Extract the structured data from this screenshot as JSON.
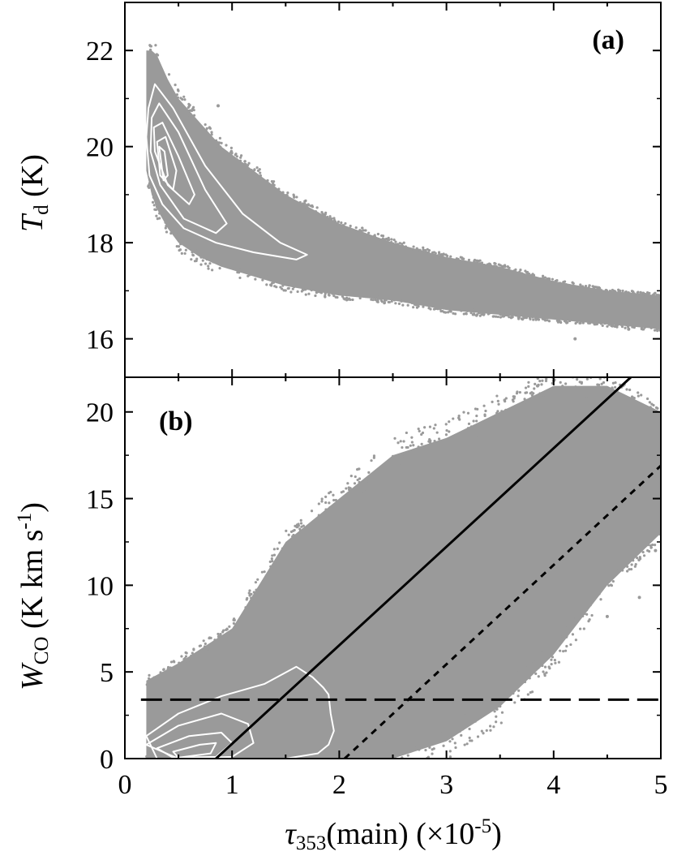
{
  "chart_data": [
    {
      "type": "scatter",
      "panel_label": "(a)",
      "ylabel": {
        "symbol": "T",
        "subscript": "d",
        "unit": " (K)"
      },
      "xlim": [
        0,
        5
      ],
      "ylim": [
        15.2,
        23.0
      ],
      "yticks": [
        16,
        18,
        20,
        22
      ],
      "ytick_labels": [
        "16",
        "18",
        "20",
        "22"
      ],
      "colors": {
        "points": "#9a9a9a",
        "contours": "#ffffff"
      },
      "envelope": {
        "x": [
          0.2,
          0.25,
          0.3,
          0.4,
          0.5,
          0.7,
          0.9,
          1.2,
          1.5,
          2.0,
          2.5,
          3.0,
          3.5,
          4.0,
          4.5,
          5.0
        ],
        "upper": [
          22.0,
          22.0,
          21.9,
          21.4,
          21.0,
          20.5,
          20.0,
          19.5,
          19.0,
          18.4,
          18.0,
          17.7,
          17.5,
          17.2,
          17.0,
          16.9
        ],
        "lower": [
          19.5,
          19.0,
          18.7,
          18.3,
          18.0,
          17.7,
          17.5,
          17.3,
          17.1,
          16.9,
          16.8,
          16.6,
          16.5,
          16.4,
          16.3,
          16.2
        ]
      },
      "contours": [
        {
          "x": [
            0.22,
            0.28,
            0.45,
            0.75,
            1.1,
            1.45,
            1.7,
            1.6,
            1.2,
            0.85,
            0.55,
            0.35,
            0.23,
            0.2,
            0.22
          ],
          "y": [
            20.8,
            21.3,
            20.8,
            19.6,
            18.6,
            18.0,
            17.75,
            17.65,
            17.8,
            18.0,
            18.3,
            18.8,
            19.4,
            20.2,
            20.8
          ]
        },
        {
          "x": [
            0.25,
            0.32,
            0.5,
            0.75,
            0.95,
            0.85,
            0.55,
            0.33,
            0.24,
            0.25
          ],
          "y": [
            20.6,
            20.9,
            20.3,
            19.1,
            18.4,
            18.2,
            18.5,
            19.2,
            19.9,
            20.6
          ]
        },
        {
          "x": [
            0.27,
            0.35,
            0.5,
            0.65,
            0.6,
            0.4,
            0.28,
            0.27
          ],
          "y": [
            20.4,
            20.5,
            19.8,
            19.0,
            18.8,
            19.2,
            19.9,
            20.4
          ]
        },
        {
          "x": [
            0.3,
            0.38,
            0.48,
            0.45,
            0.33,
            0.3
          ],
          "y": [
            20.1,
            20.2,
            19.5,
            19.1,
            19.4,
            20.1
          ]
        },
        {
          "x": [
            0.32,
            0.37,
            0.4,
            0.36,
            0.32
          ],
          "y": [
            20.0,
            19.9,
            19.4,
            19.3,
            20.0
          ]
        }
      ],
      "outliers": [
        [
          0.87,
          20.85
        ],
        [
          4.2,
          16.0
        ],
        [
          4.7,
          16.2
        ],
        [
          4.9,
          16.5
        ],
        [
          5.0,
          16.4
        ],
        [
          4.6,
          16.8
        ],
        [
          4.4,
          16.6
        ],
        [
          1.2,
          18.9
        ]
      ]
    },
    {
      "type": "scatter",
      "panel_label": "(b)",
      "xlabel": {
        "symbol": "τ",
        "subscript": "353",
        "rest": "(main) (×10",
        "sup": "-5",
        "close": ")"
      },
      "ylabel": {
        "symbol": "W",
        "subscript": "CO",
        "unit": " (K km s",
        "sup": "-1",
        "close": ")"
      },
      "xlim": [
        0,
        5
      ],
      "ylim": [
        0,
        22
      ],
      "xticks": [
        0,
        1,
        2,
        3,
        4,
        5
      ],
      "xtick_labels": [
        "0",
        "1",
        "2",
        "3",
        "4",
        "5"
      ],
      "yticks": [
        0,
        5,
        10,
        15,
        20
      ],
      "ytick_labels": [
        "0",
        "5",
        "10",
        "15",
        "20"
      ],
      "colors": {
        "points": "#9a9a9a",
        "contours": "#ffffff",
        "lines": "#000000"
      },
      "envelope": {
        "x": [
          0.2,
          0.5,
          1.0,
          1.5,
          2.0,
          2.5,
          3.0,
          3.5,
          4.0,
          4.5,
          5.0
        ],
        "upper": [
          4.5,
          5.5,
          7.5,
          12.5,
          15.0,
          17.5,
          18.5,
          20.0,
          21.5,
          21.5,
          20.0
        ],
        "lower": [
          0.0,
          0.0,
          0.0,
          0.0,
          0.0,
          0.0,
          1.0,
          3.0,
          6.0,
          10.0,
          13.0
        ]
      },
      "contours": [
        {
          "x": [
            0.2,
            0.5,
            0.9,
            1.3,
            1.6,
            1.75,
            1.85,
            1.9,
            1.92,
            1.95,
            1.9,
            1.8,
            1.5,
            1.0,
            0.6,
            0.3,
            0.2
          ],
          "y": [
            1.3,
            2.6,
            3.6,
            4.3,
            5.3,
            4.7,
            4.1,
            3.7,
            2.6,
            1.6,
            0.8,
            0.3,
            0.0,
            0.0,
            0.0,
            0.0,
            1.3
          ]
        },
        {
          "x": [
            0.2,
            0.5,
            0.9,
            1.15,
            1.2,
            1.0,
            0.5,
            0.2
          ],
          "y": [
            0.8,
            1.9,
            2.6,
            2.0,
            0.9,
            0.1,
            0.0,
            0.8
          ]
        },
        {
          "x": [
            0.3,
            0.6,
            0.9,
            1.0,
            0.85,
            0.45,
            0.3
          ],
          "y": [
            0.6,
            1.3,
            1.5,
            0.9,
            0.1,
            0.05,
            0.6
          ]
        },
        {
          "x": [
            0.45,
            0.7,
            0.85,
            0.8,
            0.5,
            0.45
          ],
          "y": [
            0.4,
            0.8,
            0.9,
            0.3,
            0.05,
            0.4
          ]
        }
      ],
      "lines": [
        {
          "style": "solid",
          "x": [
            0.85,
            4.72
          ],
          "y": [
            0.0,
            22.0
          ]
        },
        {
          "style": "dotted",
          "x": [
            2.05,
            5.0
          ],
          "y": [
            0.0,
            16.9
          ]
        },
        {
          "style": "dashed",
          "x": [
            0.15,
            5.0
          ],
          "y": [
            3.4,
            3.4
          ]
        }
      ],
      "outliers": [
        [
          4.95,
          12.0
        ],
        [
          4.9,
          19.0
        ],
        [
          4.7,
          13.3
        ],
        [
          4.8,
          9.3
        ],
        [
          3.85,
          21.5
        ],
        [
          4.0,
          21.8
        ],
        [
          4.5,
          8.2
        ]
      ]
    }
  ]
}
